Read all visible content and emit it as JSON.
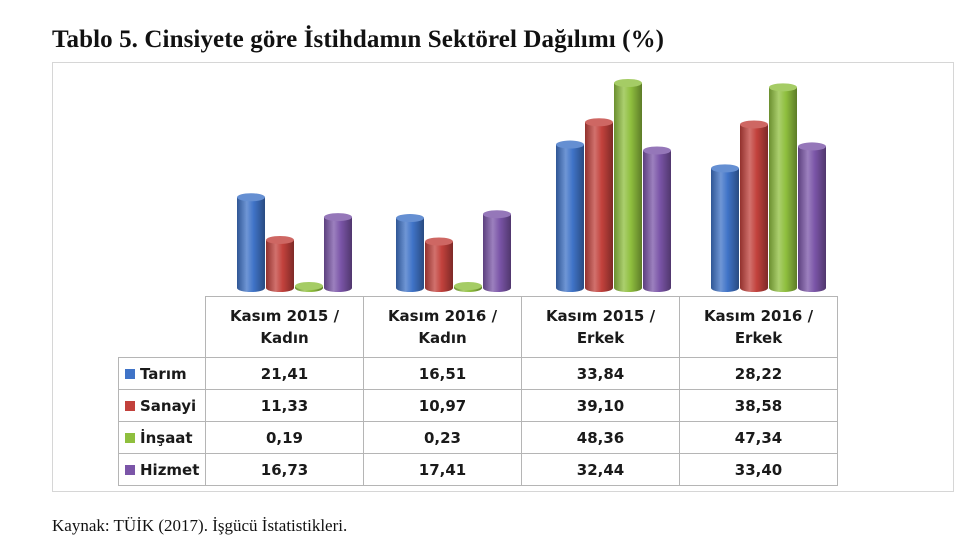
{
  "title": "Tablo 5. Cinsiyete göre İstihdamın Sektörel Dağılımı (%)",
  "caption": "Kaynak: TÜİK (2017). İşgücü İstatistikleri.",
  "chart_data": {
    "type": "bar",
    "categories": [
      [
        "Kasım 2015 /",
        "Kadın"
      ],
      [
        "Kasım 2016 /",
        "Kadın"
      ],
      [
        "Kasım 2015 /",
        "Erkek"
      ],
      [
        "Kasım 2016 /",
        "Erkek"
      ]
    ],
    "series": [
      {
        "name": "Tarım",
        "color": "#3f73c7",
        "values": [
          21.41,
          16.51,
          33.84,
          28.22
        ],
        "labels": [
          "21,41",
          "16,51",
          "33,84",
          "28,22"
        ]
      },
      {
        "name": "Sanayi",
        "color": "#c2413c",
        "values": [
          11.33,
          10.97,
          39.1,
          38.58
        ],
        "labels": [
          "11,33",
          "10,97",
          "39,10",
          "38,58"
        ]
      },
      {
        "name": "İnşaat",
        "color": "#8fbf3e",
        "values": [
          0.19,
          0.23,
          48.36,
          47.34
        ],
        "labels": [
          "0,19",
          "0,23",
          "48,36",
          "47,34"
        ]
      },
      {
        "name": "Hizmet",
        "color": "#7b55a8",
        "values": [
          16.73,
          17.41,
          32.44,
          33.4
        ],
        "labels": [
          "16,73",
          "17,41",
          "32,44",
          "33,40"
        ]
      }
    ],
    "style": "3d-cylinder",
    "legend": "data-table-below",
    "grid": false
  }
}
